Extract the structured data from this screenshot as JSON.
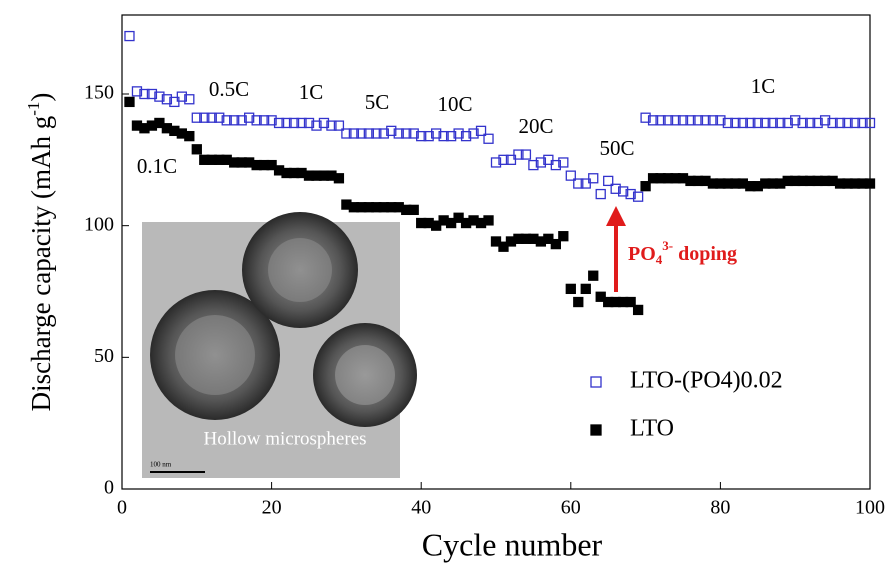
{
  "chart_data": {
    "type": "scatter",
    "xlabel": "Cycle number",
    "ylabel": [
      "Discharge capacity (mAh g",
      "-1",
      ")"
    ],
    "xlim": [
      0,
      100
    ],
    "ylim": [
      0,
      180
    ],
    "xticks": [
      0,
      20,
      40,
      60,
      80,
      100
    ],
    "yticks": [
      0,
      50,
      100,
      150
    ],
    "legend": "lower right",
    "x": [
      1,
      2,
      3,
      4,
      5,
      6,
      7,
      8,
      9,
      10,
      11,
      12,
      13,
      14,
      15,
      16,
      17,
      18,
      19,
      20,
      21,
      22,
      23,
      24,
      25,
      26,
      27,
      28,
      29,
      30,
      31,
      32,
      33,
      34,
      35,
      36,
      37,
      38,
      39,
      40,
      41,
      42,
      43,
      44,
      45,
      46,
      47,
      48,
      49,
      50,
      51,
      52,
      53,
      54,
      55,
      56,
      57,
      58,
      59,
      60,
      61,
      62,
      63,
      64,
      65,
      66,
      67,
      68,
      69,
      70,
      71,
      72,
      73,
      74,
      75,
      76,
      77,
      78,
      79,
      80,
      81,
      82,
      83,
      84,
      85,
      86,
      87,
      88,
      89,
      90,
      91,
      92,
      93,
      94,
      95,
      96,
      97,
      98,
      99,
      100
    ],
    "series": [
      {
        "name": "LTO-(PO4)0.02",
        "color": "#3333cc",
        "marker": "open",
        "values": [
          172,
          151,
          150,
          150,
          149,
          148,
          147,
          149,
          148,
          141,
          141,
          141,
          141,
          140,
          140,
          140,
          141,
          140,
          140,
          140,
          139,
          139,
          139,
          139,
          139,
          138,
          139,
          138,
          138,
          135,
          135,
          135,
          135,
          135,
          135,
          136,
          135,
          135,
          135,
          134,
          134,
          135,
          134,
          134,
          135,
          134,
          135,
          136,
          133,
          124,
          125,
          125,
          127,
          127,
          123,
          124,
          125,
          123,
          124,
          119,
          116,
          116,
          118,
          112,
          117,
          114,
          113,
          112,
          111,
          141,
          140,
          140,
          140,
          140,
          140,
          140,
          140,
          140,
          140,
          140,
          139,
          139,
          139,
          139,
          139,
          139,
          139,
          139,
          139,
          140,
          139,
          139,
          139,
          140,
          139,
          139,
          139,
          139,
          139,
          139
        ]
      },
      {
        "name": "LTO",
        "color": "#000000",
        "marker": "filled",
        "values": [
          147,
          138,
          137,
          138,
          139,
          137,
          136,
          135,
          134,
          129,
          125,
          125,
          125,
          125,
          124,
          124,
          124,
          123,
          123,
          123,
          121,
          120,
          120,
          120,
          119,
          119,
          119,
          119,
          118,
          108,
          107,
          107,
          107,
          107,
          107,
          107,
          107,
          106,
          106,
          101,
          101,
          100,
          102,
          101,
          103,
          101,
          102,
          101,
          102,
          94,
          92,
          94,
          95,
          95,
          95,
          94,
          95,
          93,
          96,
          76,
          71,
          76,
          81,
          73,
          71,
          71,
          71,
          71,
          68,
          115,
          118,
          118,
          118,
          118,
          118,
          117,
          117,
          117,
          116,
          116,
          116,
          116,
          116,
          115,
          115,
          116,
          116,
          116,
          117,
          117,
          117,
          117,
          117,
          117,
          117,
          116,
          116,
          116,
          116,
          116
        ]
      }
    ],
    "annotations": [
      "0.1C",
      "0.5C",
      "1C",
      "5C",
      "10C",
      "20C",
      "50C",
      "1C"
    ],
    "arrow_label": [
      "PO",
      "4",
      "3-",
      " doping"
    ],
    "inset": {
      "caption": "Hollow microspheres",
      "scale": "100 nm"
    }
  }
}
